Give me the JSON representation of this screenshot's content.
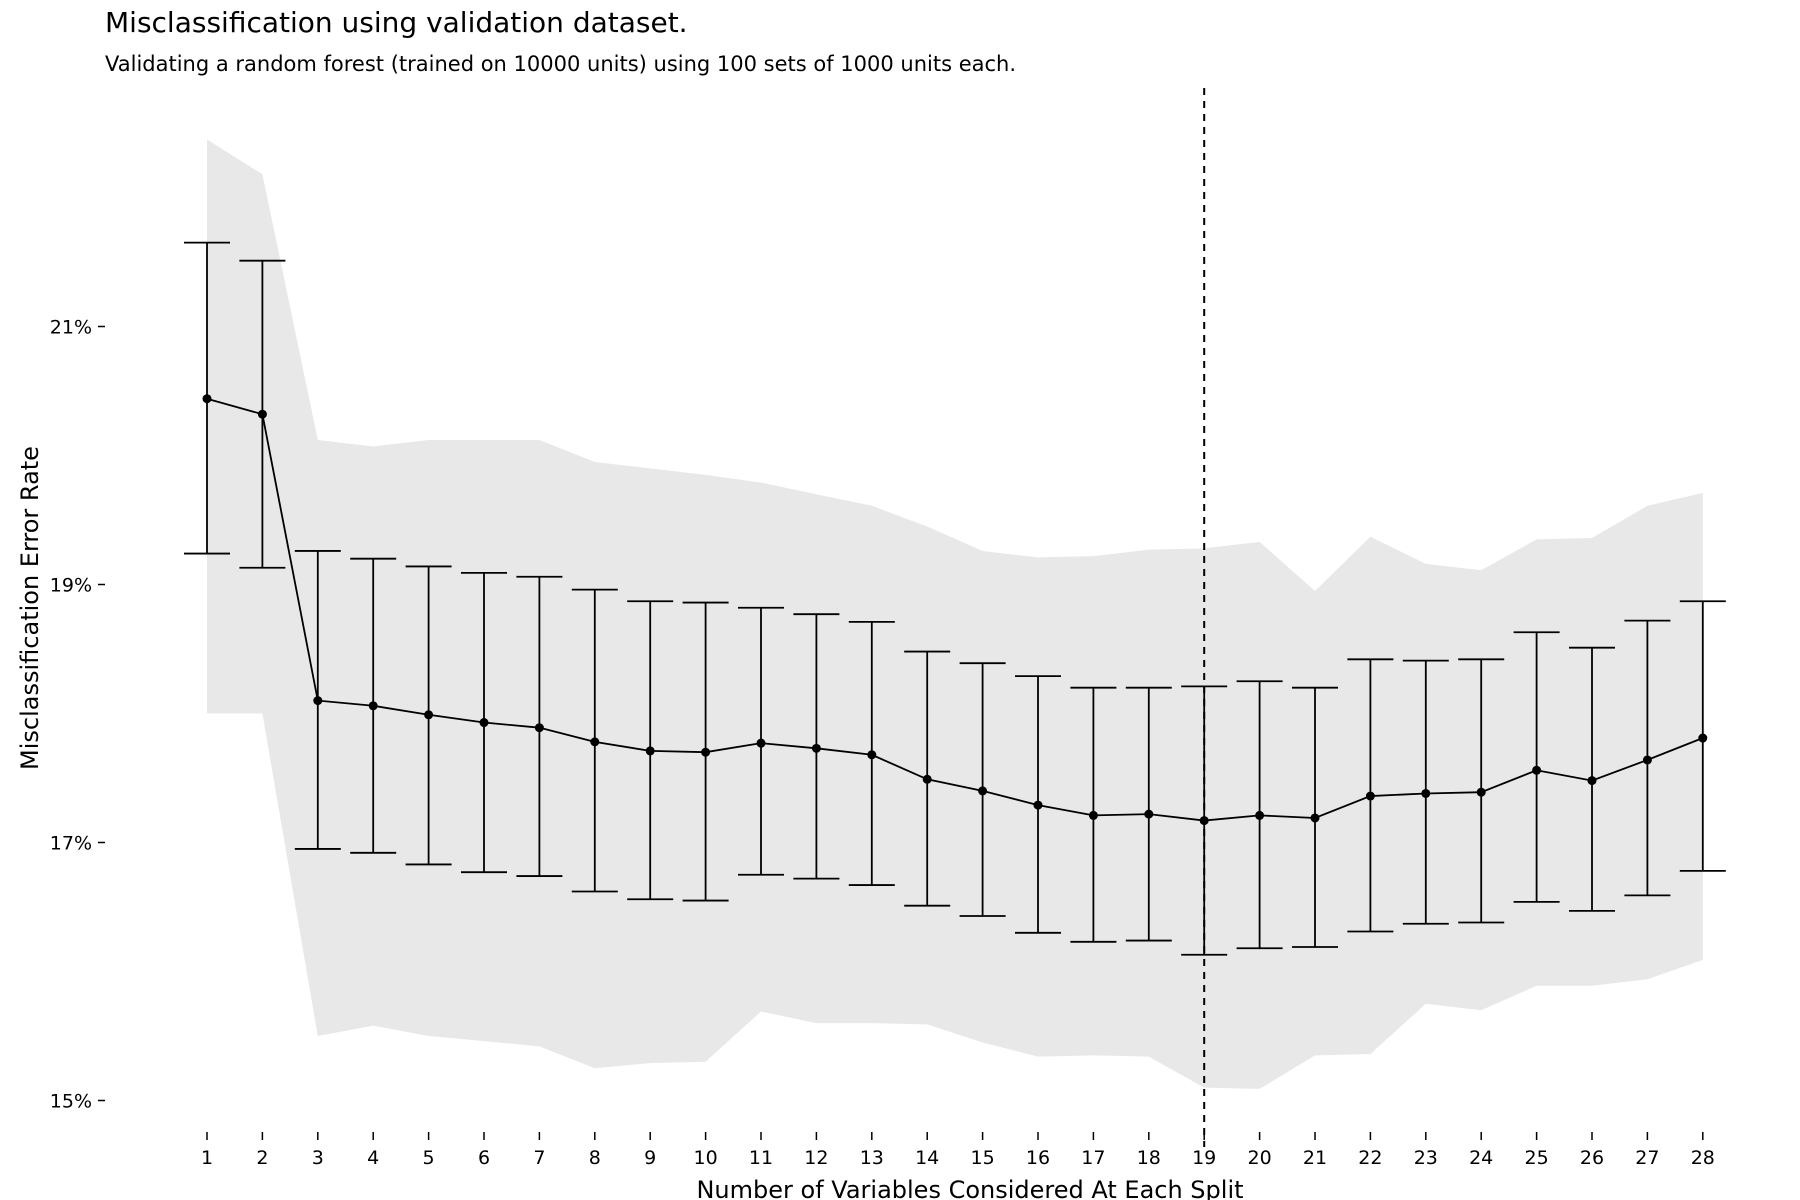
{
  "chart_data": {
    "type": "line",
    "title": "Misclassification using validation dataset.",
    "subtitle": "Validating a random forest (trained on 10000 units) using 100 sets of 1000 units each.",
    "xlabel": "Number of Variables Considered At Each Split",
    "ylabel": "Misclassification Error Rate",
    "x": [
      1,
      2,
      3,
      4,
      5,
      6,
      7,
      8,
      9,
      10,
      11,
      12,
      13,
      14,
      15,
      16,
      17,
      18,
      19,
      20,
      21,
      22,
      23,
      24,
      25,
      26,
      27,
      28
    ],
    "ylim": [
      14.8,
      22.5
    ],
    "y_ticks": [
      15,
      17,
      19,
      21
    ],
    "y_tick_labels": [
      "15%",
      "17%",
      "19%",
      "21%"
    ],
    "series": [
      {
        "type": "line-with-errorbars",
        "mean": [
          20.44,
          20.32,
          18.1,
          18.06,
          17.99,
          17.93,
          17.89,
          17.78,
          17.71,
          17.7,
          17.77,
          17.73,
          17.68,
          17.49,
          17.4,
          17.29,
          17.21,
          17.22,
          17.17,
          17.21,
          17.19,
          17.36,
          17.38,
          17.39,
          17.56,
          17.48,
          17.64,
          17.81
        ],
        "error_upper": [
          21.65,
          21.51,
          19.26,
          19.2,
          19.14,
          19.09,
          19.06,
          18.96,
          18.87,
          18.86,
          18.82,
          18.77,
          18.71,
          18.48,
          18.39,
          18.29,
          18.2,
          18.2,
          18.21,
          18.25,
          18.2,
          18.42,
          18.41,
          18.42,
          18.63,
          18.51,
          18.72,
          18.87
        ],
        "error_lower": [
          19.24,
          19.13,
          16.95,
          16.92,
          16.83,
          16.77,
          16.74,
          16.62,
          16.56,
          16.55,
          16.75,
          16.72,
          16.67,
          16.51,
          16.43,
          16.3,
          16.23,
          16.24,
          16.13,
          16.18,
          16.19,
          16.31,
          16.37,
          16.38,
          16.54,
          16.47,
          16.59,
          16.78
        ]
      },
      {
        "type": "range-band",
        "color": "#e8e8e8",
        "upper": [
          22.45,
          22.18,
          20.12,
          20.07,
          20.12,
          20.12,
          20.12,
          19.95,
          19.9,
          19.85,
          19.79,
          19.7,
          19.61,
          19.45,
          19.26,
          19.21,
          19.22,
          19.27,
          19.28,
          19.33,
          18.95,
          19.37,
          19.16,
          19.11,
          19.35,
          19.36,
          19.61,
          19.71
        ],
        "lower": [
          18.0,
          18.0,
          15.5,
          15.58,
          15.5,
          15.46,
          15.42,
          15.25,
          15.29,
          15.3,
          15.69,
          15.6,
          15.6,
          15.59,
          15.45,
          15.34,
          15.35,
          15.34,
          15.1,
          15.09,
          15.35,
          15.36,
          15.75,
          15.7,
          15.89,
          15.89,
          15.94,
          16.09
        ]
      }
    ],
    "vline": {
      "x": 19,
      "style": "dashed"
    },
    "grid": false,
    "legend": "none"
  }
}
